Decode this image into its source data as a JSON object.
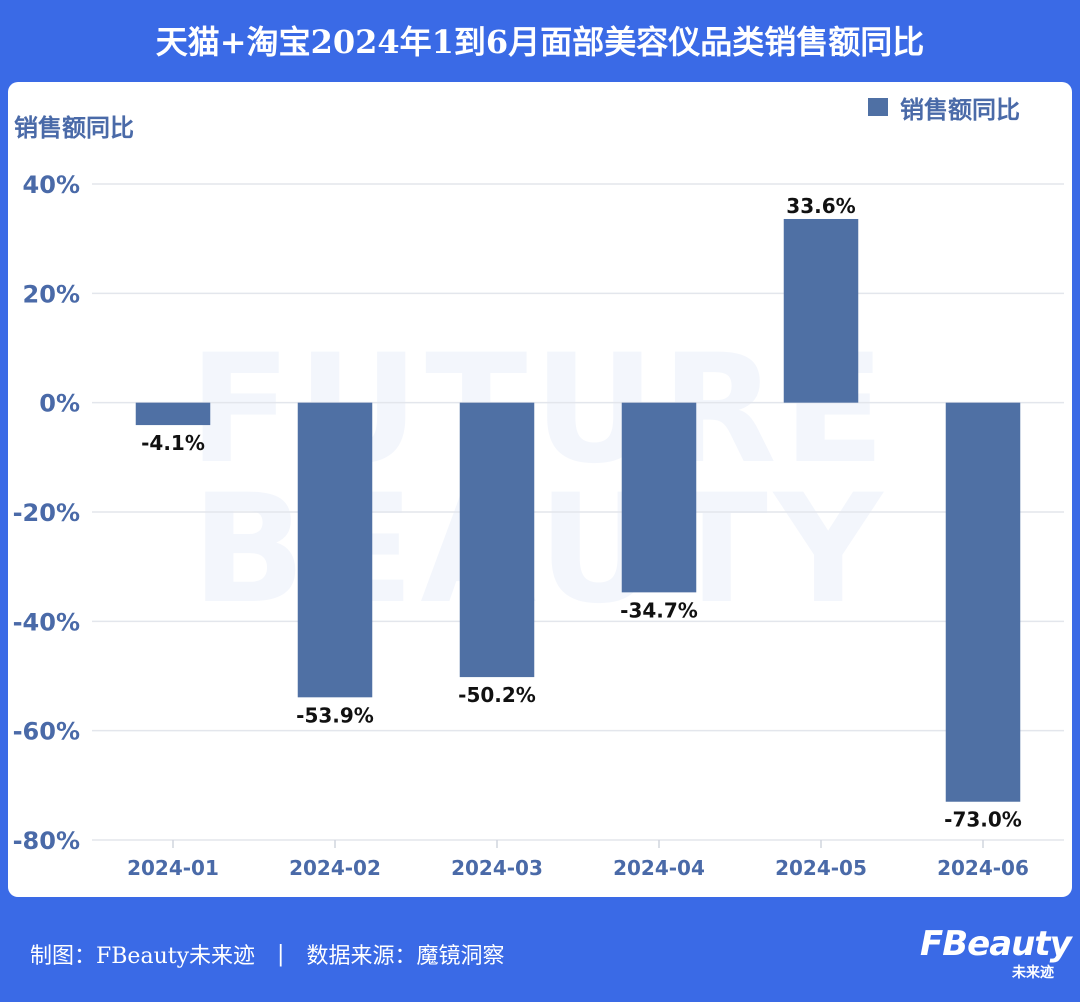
{
  "header": {
    "title": "天猫+淘宝2024年1到6月面部美容仪品类销售额同比"
  },
  "watermark": {
    "line1": "FUTURE",
    "line2": "BEAUTY"
  },
  "chart_data": {
    "type": "bar",
    "categories": [
      "2024-01",
      "2024-02",
      "2024-03",
      "2024-04",
      "2024-05",
      "2024-06"
    ],
    "series": [
      {
        "name": "销售额同比",
        "values": [
          -4.1,
          -53.9,
          -50.2,
          -34.7,
          33.6,
          -73.0
        ]
      }
    ],
    "data_labels": [
      "-4.1%",
      "-53.9%",
      "-50.2%",
      "-34.7%",
      "33.6%",
      "-73.0%"
    ],
    "ylabel": "销售额同比",
    "xlabel": "",
    "ylim": [
      -80,
      40
    ],
    "yticks": [
      40,
      20,
      0,
      -20,
      -40,
      -60,
      -80
    ],
    "ytick_labels": [
      "40%",
      "20%",
      "0%",
      "-20%",
      "-40%",
      "-60%",
      "-80%"
    ],
    "grid": true,
    "legend": "top-right",
    "bar_color": "#4f70a4"
  },
  "footer": {
    "credit": "制图：FBeauty未来迹",
    "separator": "|",
    "source": "数据来源：魔镜洞察"
  },
  "logo": {
    "main": "FBeauty",
    "sub": "未来迹"
  }
}
